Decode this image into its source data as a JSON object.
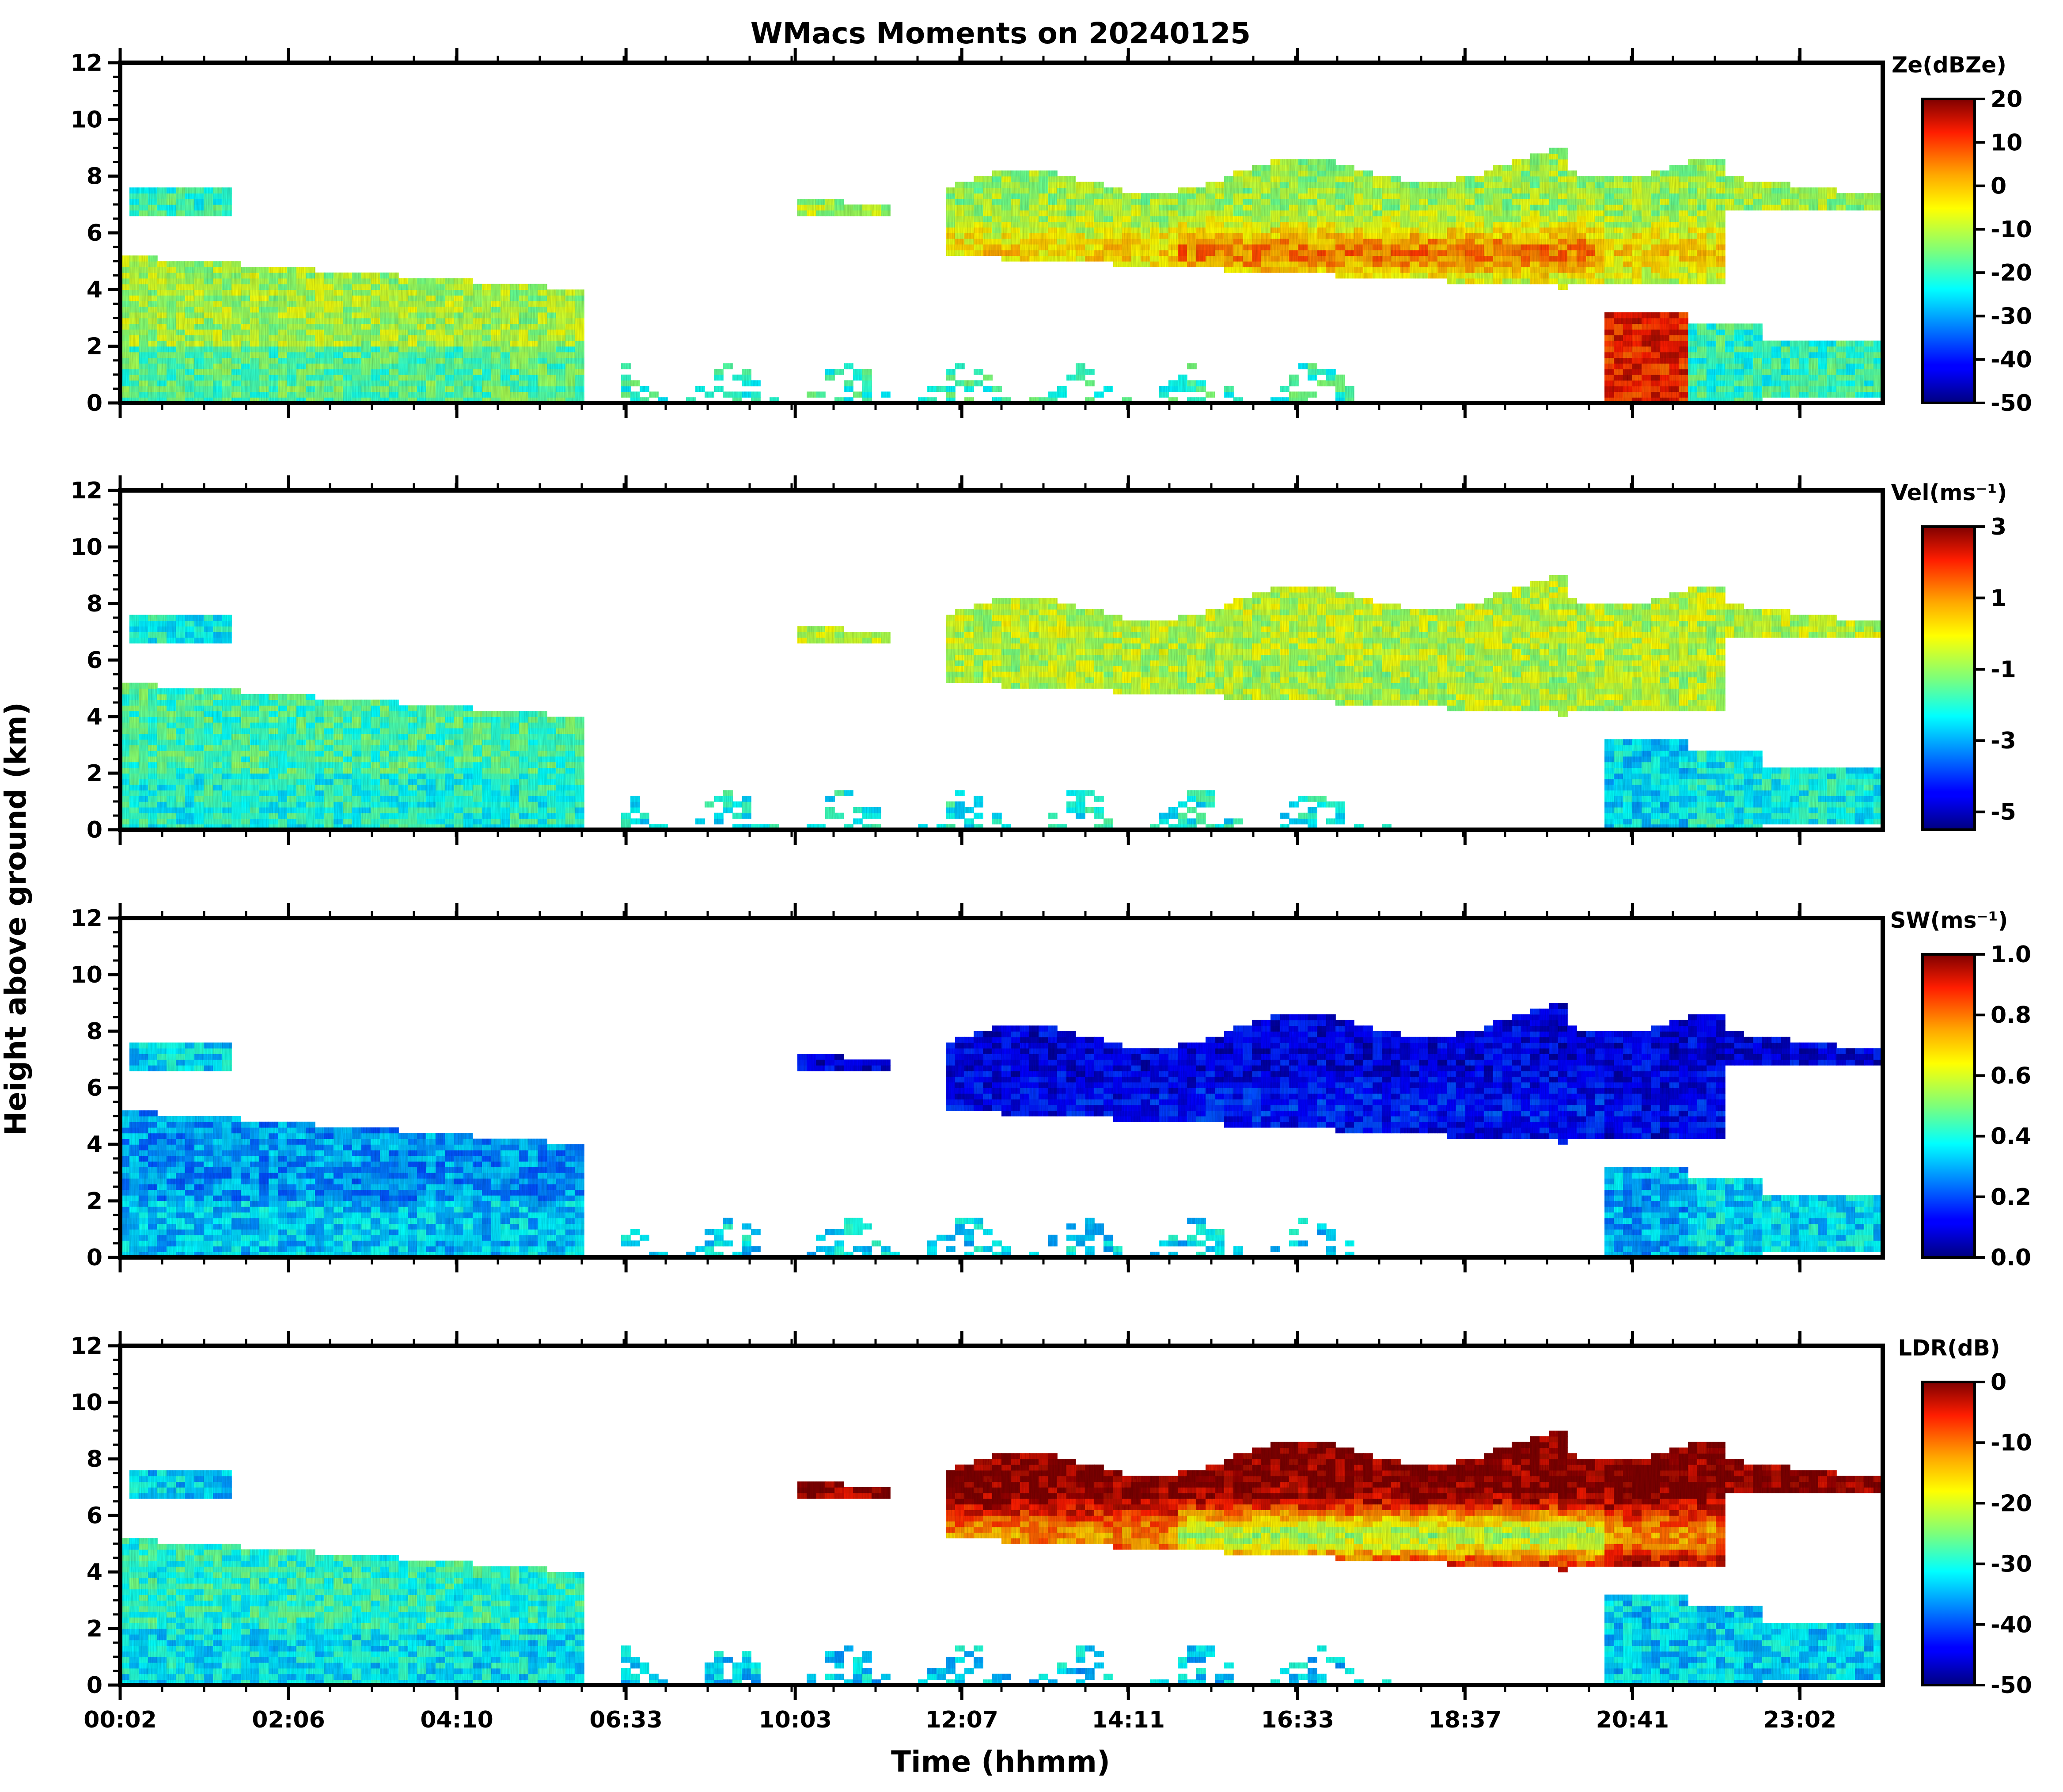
{
  "chart_data": {
    "type": "heatmap",
    "title": "WMacs Moments on 20240125",
    "xlabel": "Time (hhmm)",
    "ylabel": "Height above ground (km)",
    "x_ticks": [
      "00:02",
      "02:06",
      "04:10",
      "06:33",
      "10:03",
      "12:07",
      "14:11",
      "16:33",
      "18:37",
      "20:41",
      "23:02"
    ],
    "ylim": [
      0,
      12
    ],
    "y_ticks": [
      "0",
      "2",
      "4",
      "6",
      "8",
      "10",
      "12"
    ],
    "panels": [
      {
        "name": "reflectivity",
        "colorbar_label": "Ze(dBZe)",
        "colorbar_ticks": [
          "20",
          "10",
          "0",
          "-10",
          "-20",
          "-30",
          "-40",
          "-50"
        ],
        "range": [
          -50,
          20
        ],
        "dominant_values": {
          "high_cloud": -12,
          "cloud_core": 5,
          "lower_layer": -20,
          "precip_column": 12
        }
      },
      {
        "name": "velocity",
        "colorbar_label": "Vel(ms⁻¹)",
        "colorbar_ticks": [
          "3",
          "1",
          "-1",
          "-3",
          "-5"
        ],
        "range": [
          -5.5,
          3
        ],
        "dominant_values": {
          "high_cloud": -0.6,
          "cloud_core": -0.8,
          "lower_layer": -2.2,
          "precip_column": -2.5
        }
      },
      {
        "name": "spectrum_width",
        "colorbar_label": "SW(ms⁻¹)",
        "colorbar_ticks": [
          "1.0",
          "0.8",
          "0.6",
          "0.4",
          "0.2",
          "0.0"
        ],
        "range": [
          0,
          1
        ],
        "dominant_values": {
          "high_cloud": 0.1,
          "cloud_core": 0.15,
          "lower_layer": 0.35,
          "precip_column": 0.3
        }
      },
      {
        "name": "ldr",
        "colorbar_label": "LDR(dB)",
        "colorbar_ticks": [
          "0",
          "-10",
          "-20",
          "-30",
          "-40",
          "-50"
        ],
        "range": [
          -50,
          0
        ],
        "dominant_values": {
          "high_cloud": 0,
          "cloud_core": -22,
          "lower_layer": -33,
          "precip_column": -33
        }
      }
    ]
  }
}
